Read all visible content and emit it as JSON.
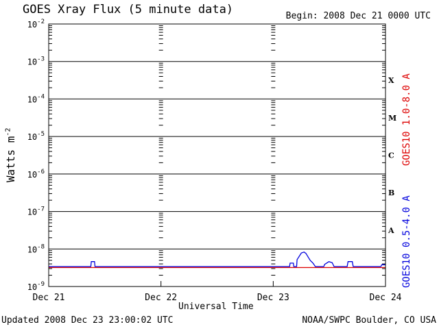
{
  "header": {
    "title": "GOES Xray Flux (5 minute data)",
    "begin": "Begin:  2008 Dec 21 0000 UTC"
  },
  "footer": {
    "updated": "Updated 2008 Dec 23 23:00:02 UTC",
    "credit": "NOAA/SWPC Boulder, CO USA"
  },
  "chart_data": {
    "type": "line",
    "xlabel": "Universal Time",
    "ylabel_base": "Watts m",
    "ylabel_sup": "-2",
    "yscale": "log",
    "ylim": [
      1e-09,
      0.01
    ],
    "xlim_hours": [
      0,
      72
    ],
    "x_ticks": [
      "Dec 21",
      "Dec 22",
      "Dec 23",
      "Dec 24"
    ],
    "y_ticks": [
      {
        "base": "10",
        "exp": "-2"
      },
      {
        "base": "10",
        "exp": "-3"
      },
      {
        "base": "10",
        "exp": "-4"
      },
      {
        "base": "10",
        "exp": "-5"
      },
      {
        "base": "10",
        "exp": "-6"
      },
      {
        "base": "10",
        "exp": "-7"
      },
      {
        "base": "10",
        "exp": "-8"
      },
      {
        "base": "10",
        "exp": "-9"
      }
    ],
    "flare_classes": [
      "X",
      "M",
      "C",
      "B",
      "A"
    ],
    "grid": "horizontal decades",
    "series": [
      {
        "name": "GOES10 1.0-8.0 A",
        "color": "#dd0000",
        "points": [
          [
            0,
            3.2e-09
          ],
          [
            72,
            3.2e-09
          ]
        ]
      },
      {
        "name": "GOES10 0.5-4.0 A",
        "color": "#0000dd",
        "points": [
          [
            0,
            3.4e-09
          ],
          [
            9.0,
            3.4e-09
          ],
          [
            9.1,
            4.6e-09
          ],
          [
            9.8,
            4.6e-09
          ],
          [
            9.9,
            3.4e-09
          ],
          [
            51.5,
            3.4e-09
          ],
          [
            51.6,
            4.2e-09
          ],
          [
            52.3,
            4.2e-09
          ],
          [
            52.4,
            3.4e-09
          ],
          [
            53.0,
            3.4e-09
          ],
          [
            53.1,
            5.2e-09
          ],
          [
            53.6,
            6.5e-09
          ],
          [
            54.0,
            7.8e-09
          ],
          [
            54.6,
            8.3e-09
          ],
          [
            55.0,
            7.6e-09
          ],
          [
            55.4,
            6.3e-09
          ],
          [
            55.9,
            5e-09
          ],
          [
            56.5,
            4.2e-09
          ],
          [
            57.0,
            3.4e-09
          ],
          [
            58.8,
            3.4e-09
          ],
          [
            59.0,
            3.9e-09
          ],
          [
            59.4,
            4.2e-09
          ],
          [
            59.9,
            4.6e-09
          ],
          [
            60.6,
            4.3e-09
          ],
          [
            61.0,
            3.4e-09
          ],
          [
            63.8,
            3.4e-09
          ],
          [
            64.0,
            4.6e-09
          ],
          [
            64.9,
            4.6e-09
          ],
          [
            65.1,
            3.4e-09
          ],
          [
            71.0,
            3.4e-09
          ],
          [
            71.2,
            3.8e-09
          ],
          [
            72,
            3.8e-09
          ]
        ]
      }
    ]
  }
}
